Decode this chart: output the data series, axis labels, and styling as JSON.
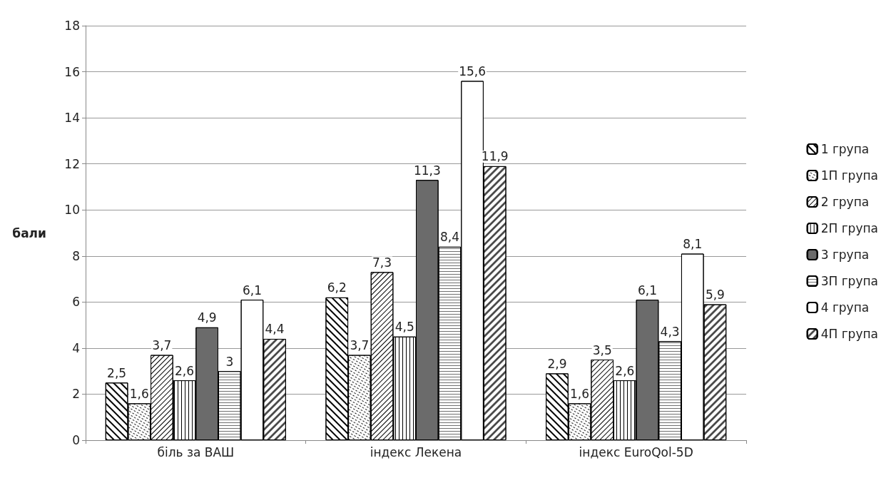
{
  "chart_data": {
    "type": "bar",
    "ylabel": "бали",
    "categories": [
      "біль за ВАШ",
      "індекс Лекена",
      "індекс EuroQol-5D"
    ],
    "series": [
      {
        "name": "1 група",
        "color": "#ffffff",
        "values": [
          2.5,
          6.2,
          2.9
        ],
        "value_labels": [
          "2,5",
          "6,2",
          "2,9"
        ]
      },
      {
        "name": "1П група",
        "color": "#ffffff",
        "values": [
          1.6,
          3.7,
          1.6
        ],
        "value_labels": [
          "1,6",
          "3,7",
          "1,6"
        ]
      },
      {
        "name": "2 група",
        "color": "#ffffff",
        "values": [
          3.7,
          7.3,
          3.5
        ],
        "value_labels": [
          "3,7",
          "7,3",
          "3,5"
        ]
      },
      {
        "name": "2П група",
        "color": "#ffffff",
        "values": [
          2.6,
          4.5,
          2.6
        ],
        "value_labels": [
          "2,6",
          "4,5",
          "2,6"
        ]
      },
      {
        "name": "3 група",
        "color": "#6b6b6b",
        "values": [
          4.9,
          11.3,
          6.1
        ],
        "value_labels": [
          "4,9",
          "11,3",
          "6,1"
        ]
      },
      {
        "name": "3П група",
        "color": "#ffffff",
        "values": [
          3,
          8.4,
          4.3
        ],
        "value_labels": [
          "3",
          "8,4",
          "4,3"
        ]
      },
      {
        "name": "4 група",
        "color": "#ffffff",
        "values": [
          6.1,
          15.6,
          8.1
        ],
        "value_labels": [
          "6,1",
          "15,6",
          "8,1"
        ]
      },
      {
        "name": "4П група",
        "color": "#ffffff",
        "values": [
          4.4,
          11.9,
          5.9
        ],
        "value_labels": [
          "4,4",
          "11,9",
          "5,9"
        ]
      }
    ],
    "ylim": [
      0,
      18
    ],
    "yticks": [
      0,
      2,
      4,
      6,
      8,
      10,
      12,
      14,
      16,
      18
    ],
    "grid": "y",
    "legend": "right"
  }
}
